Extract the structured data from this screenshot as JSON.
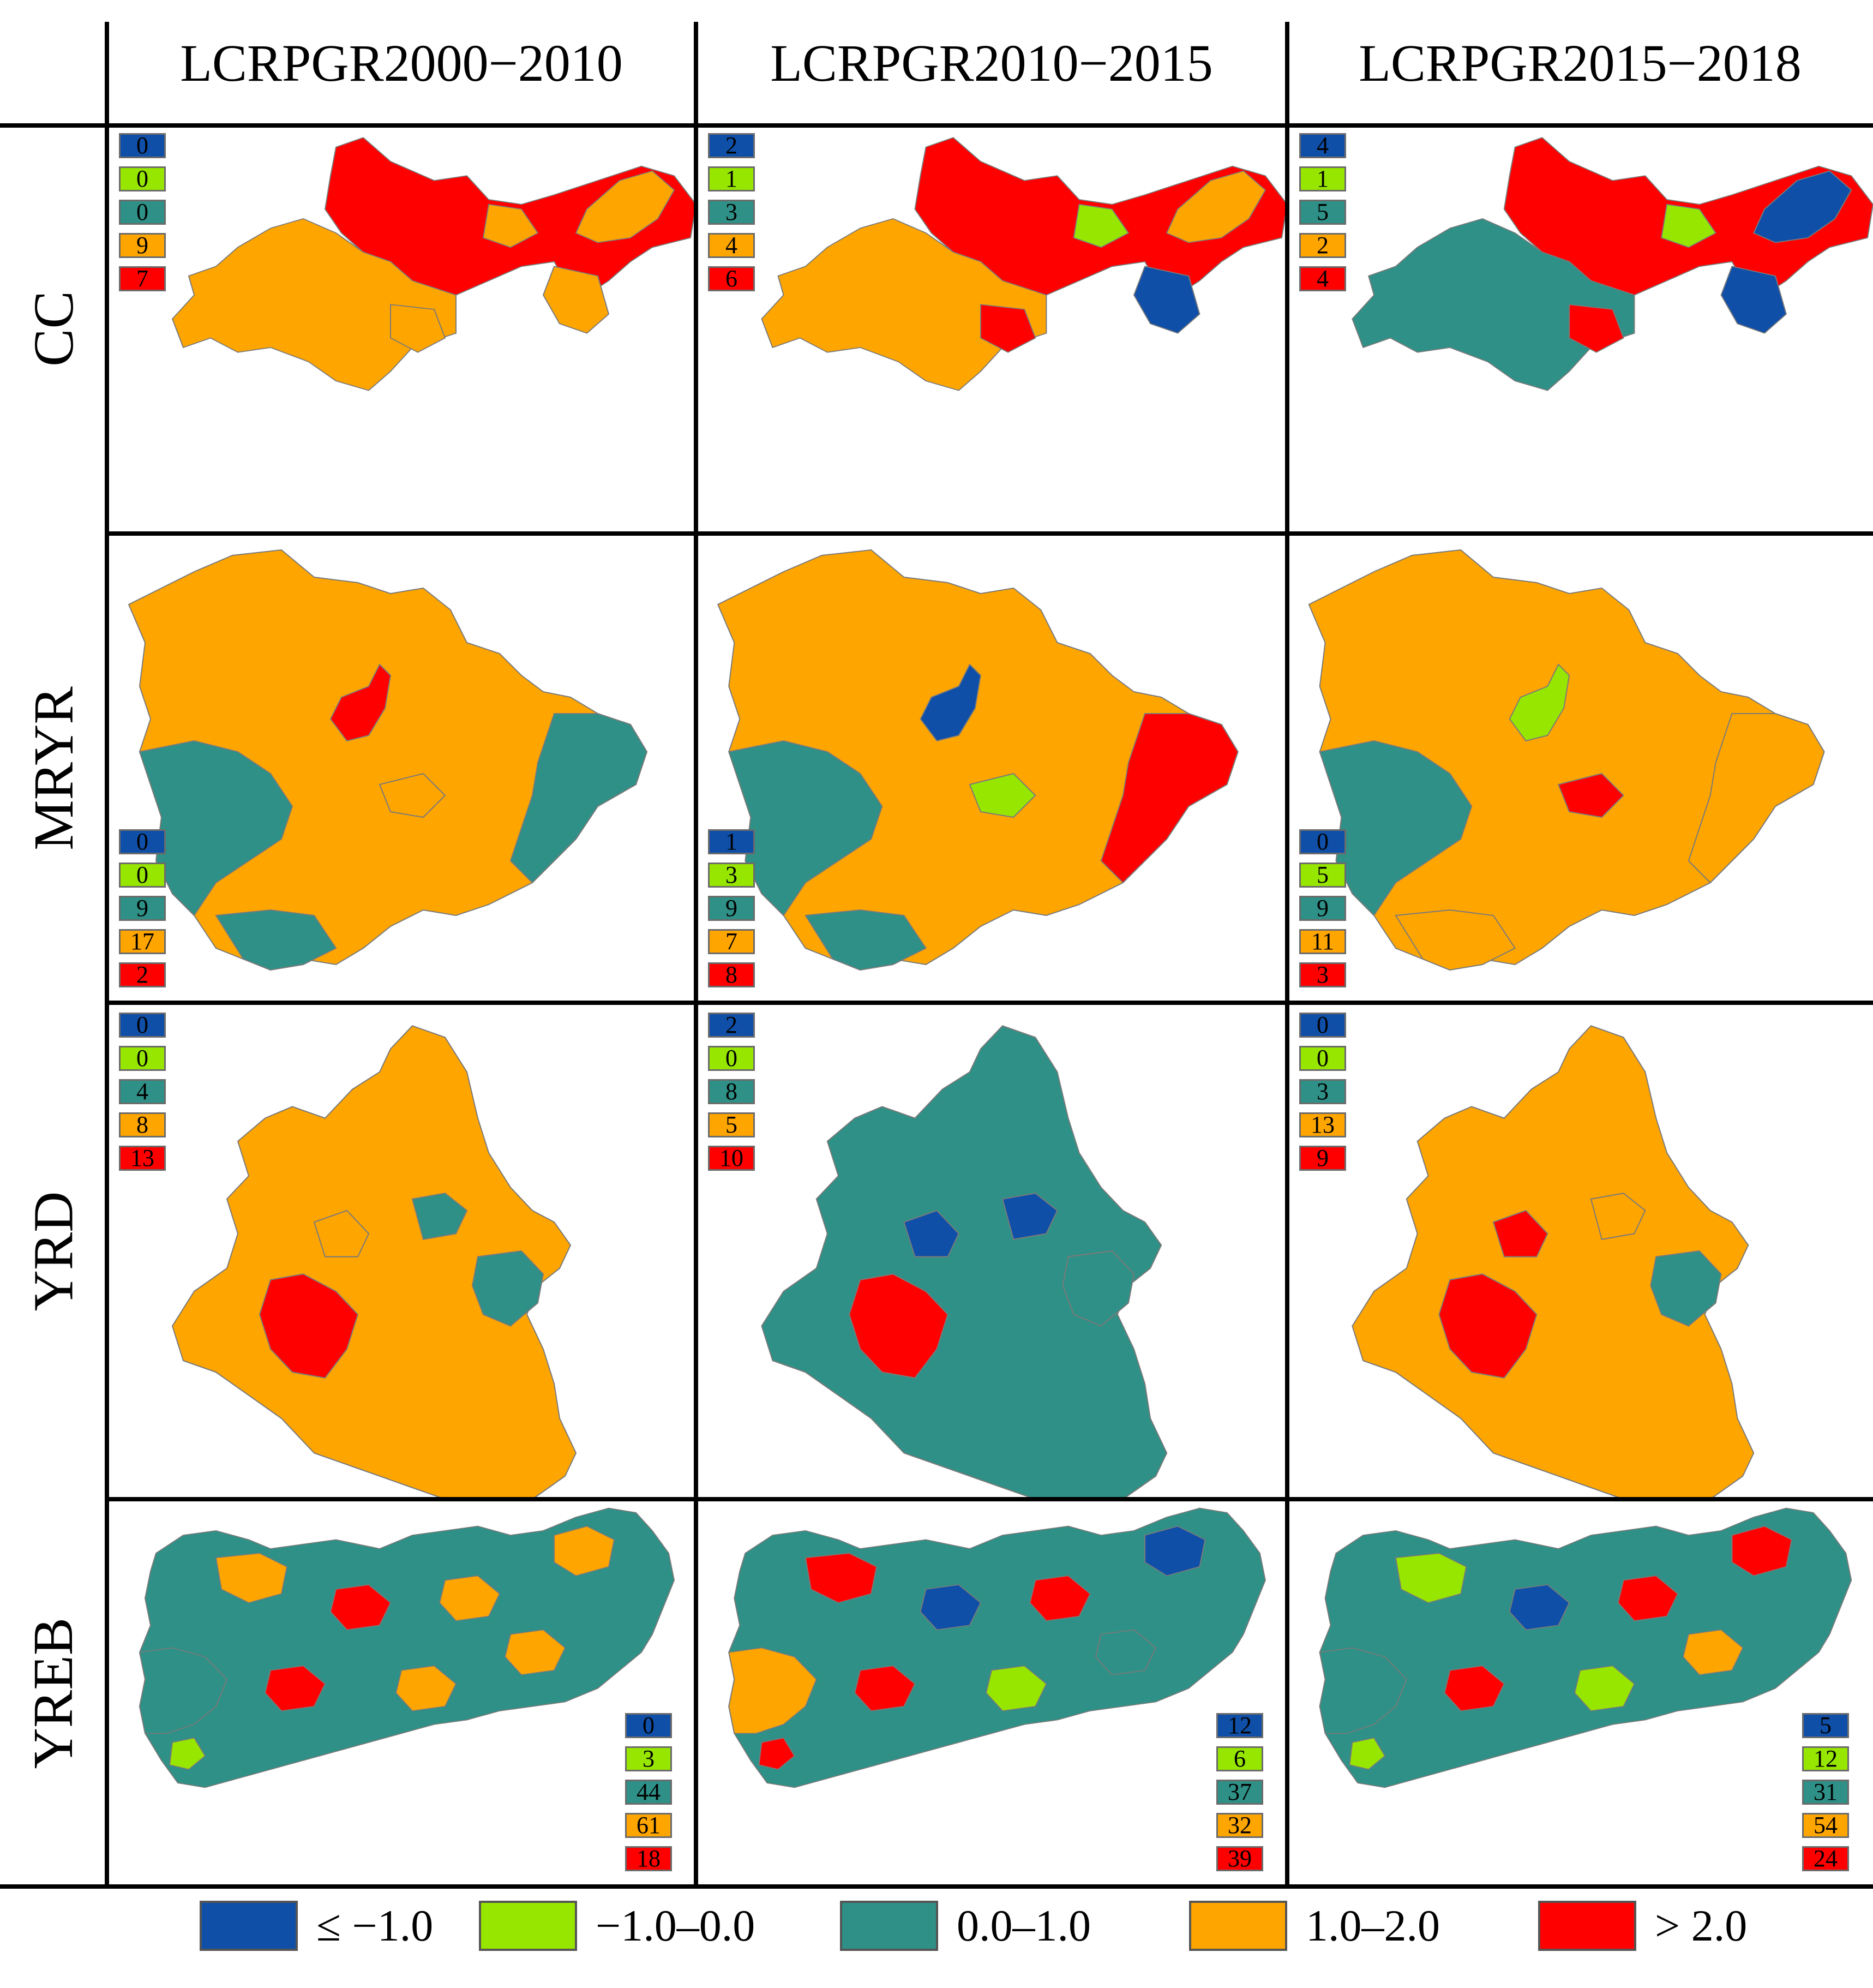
{
  "figure": {
    "columns": [
      "LCRPGR2000−2010",
      "LCRPGR2010−2015",
      "LCRPGR2015−2018"
    ],
    "rows": [
      "CC",
      "MRYR",
      "YRD",
      "YREB"
    ]
  },
  "legend": {
    "classes": [
      {
        "label": "≤ −1.0",
        "color": "#0f4fa8"
      },
      {
        "label": "−1.0–0.0",
        "color": "#97e600"
      },
      {
        "label": "0.0–1.0",
        "color": "#2e9086"
      },
      {
        "label": "1.0–2.0",
        "color": "#ffa500"
      },
      {
        "label": "> 2.0",
        "color": "#ff0000"
      }
    ]
  },
  "cells": [
    {
      "row": "CC",
      "period": "LCRPGR2000−2010",
      "counts": [
        "0",
        "0",
        "0",
        "9",
        "7"
      ]
    },
    {
      "row": "CC",
      "period": "LCRPGR2010−2015",
      "counts": [
        "2",
        "1",
        "3",
        "4",
        "6"
      ]
    },
    {
      "row": "CC",
      "period": "LCRPGR2015−2018",
      "counts": [
        "4",
        "1",
        "5",
        "2",
        "4"
      ]
    },
    {
      "row": "MRYR",
      "period": "LCRPGR2000−2010",
      "counts": [
        "0",
        "0",
        "9",
        "17",
        "2"
      ]
    },
    {
      "row": "MRYR",
      "period": "LCRPGR2010−2015",
      "counts": [
        "1",
        "3",
        "9",
        "7",
        "8"
      ]
    },
    {
      "row": "MRYR",
      "period": "LCRPGR2015−2018",
      "counts": [
        "0",
        "5",
        "9",
        "11",
        "3"
      ]
    },
    {
      "row": "YRD",
      "period": "LCRPGR2000−2010",
      "counts": [
        "0",
        "0",
        "4",
        "8",
        "13"
      ]
    },
    {
      "row": "YRD",
      "period": "LCRPGR2010−2015",
      "counts": [
        "2",
        "0",
        "8",
        "5",
        "10"
      ]
    },
    {
      "row": "YRD",
      "period": "LCRPGR2015−2018",
      "counts": [
        "0",
        "0",
        "3",
        "13",
        "9"
      ]
    },
    {
      "row": "YREB",
      "period": "LCRPGR2000−2010",
      "counts": [
        "0",
        "3",
        "44",
        "61",
        "18"
      ]
    },
    {
      "row": "YREB",
      "period": "LCRPGR2010−2015",
      "counts": [
        "12",
        "6",
        "37",
        "32",
        "39"
      ]
    },
    {
      "row": "YREB",
      "period": "LCRPGR2015−2018",
      "counts": [
        "5",
        "12",
        "31",
        "54",
        "24"
      ]
    }
  ]
}
